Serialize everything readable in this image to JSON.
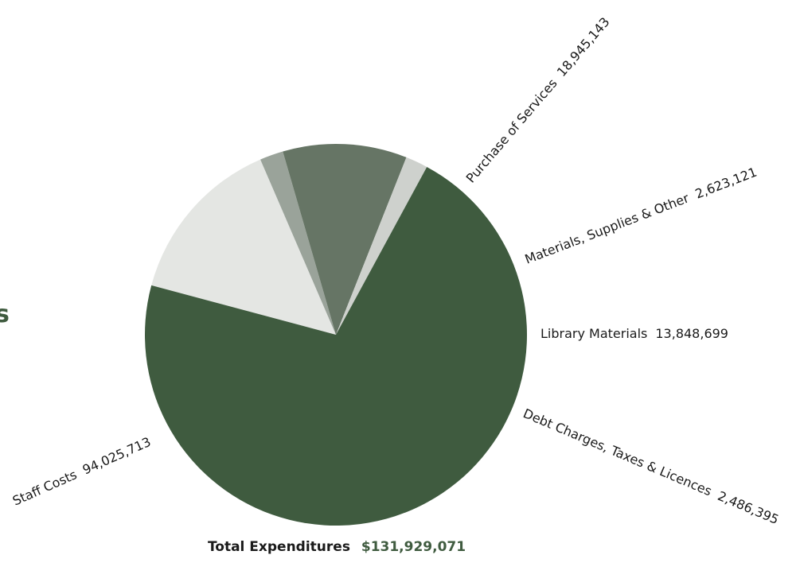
{
  "edge_fragment": "s",
  "chart_data": {
    "type": "pie",
    "title": "",
    "slices": [
      {
        "label": "Purchase of Services",
        "value_text": "18,945,143",
        "value": 18945143,
        "color": "#e4e6e3"
      },
      {
        "label": "Materials, Supplies & Other",
        "value_text": "2,623,121",
        "value": 2623121,
        "color": "#9aa39a"
      },
      {
        "label": "Library Materials",
        "value_text": "13,848,699",
        "value": 13848699,
        "color": "#667565"
      },
      {
        "label": "Debt Charges, Taxes & Licences",
        "value_text": "2,486,395",
        "value": 2486395,
        "color": "#ced1cd"
      },
      {
        "label": "Staff Costs",
        "value_text": "94,025,713",
        "value": 94025713,
        "color": "#3f5b3f"
      }
    ],
    "total": {
      "label": "Total Expenditures",
      "value": "$131,929,071"
    }
  }
}
